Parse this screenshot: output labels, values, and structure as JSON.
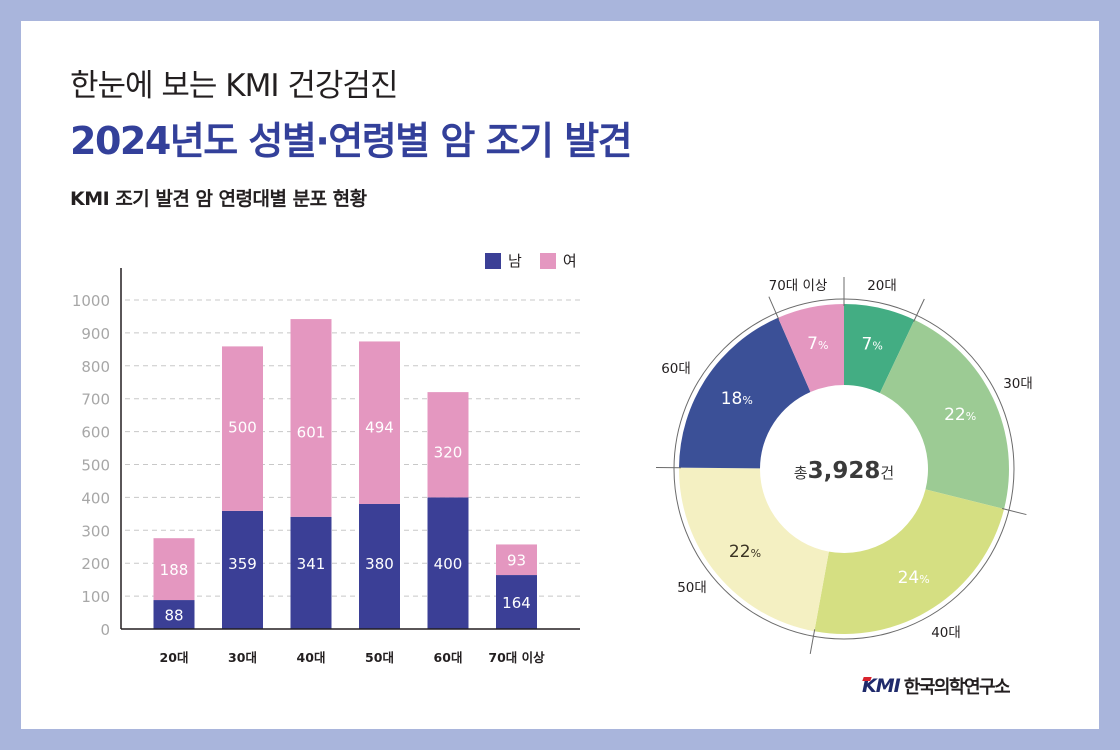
{
  "header": {
    "subtitle": "한눈에 보는 KMI 건강검진",
    "title": "2024년도 성별·연령별 암 조기 발견",
    "section_title": "KMI 조기 발견 암 연령대별 분포 현황"
  },
  "colors": {
    "frame": "#a9b5dc",
    "title": "#33409a",
    "male": "#3b3f96",
    "female": "#e497c0"
  },
  "chart_data": [
    {
      "type": "bar",
      "stacked": true,
      "title": "",
      "xlabel": "",
      "ylabel": "",
      "categories": [
        "20대",
        "30대",
        "40대",
        "50대",
        "60대",
        "70대 이상"
      ],
      "series": [
        {
          "name": "남",
          "color": "#3b3f96",
          "values": [
            88,
            359,
            341,
            380,
            400,
            164
          ]
        },
        {
          "name": "여",
          "color": "#e497c0",
          "values": [
            188,
            500,
            601,
            494,
            320,
            93
          ]
        }
      ],
      "ylim": [
        0,
        1000
      ],
      "yticks": [
        0,
        100,
        200,
        300,
        400,
        500,
        600,
        700,
        800,
        900,
        1000
      ],
      "grid": true,
      "legend": "top-right"
    },
    {
      "type": "pie",
      "donut": true,
      "center_label": {
        "prefix": "총",
        "value": "3,928",
        "suffix": "건"
      },
      "labels": [
        "20대",
        "30대",
        "40대",
        "50대",
        "60대",
        "70대 이상"
      ],
      "values": [
        276,
        859,
        942,
        874,
        720,
        257
      ],
      "percent_labels": [
        "7",
        "22",
        "24",
        "22",
        "18",
        "7"
      ],
      "percent_unit": "%",
      "colors": [
        "#43ad83",
        "#9ccb94",
        "#d5df82",
        "#f4f0c2",
        "#3b5097",
        "#e497c0"
      ],
      "label_colors": [
        "#ffffff",
        "#ffffff",
        "#ffffff",
        "#3a3323",
        "#ffffff",
        "#ffffff"
      ]
    }
  ],
  "logo": {
    "brand": "KMI",
    "org": "한국의학연구소"
  }
}
